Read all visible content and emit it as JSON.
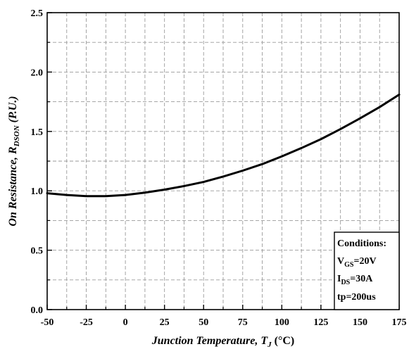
{
  "chart_data": {
    "type": "line",
    "xlabel_prefix": "Junction Temperature, ",
    "xlabel_var": "T",
    "xlabel_sub": "J",
    "xlabel_unit": " (°C)",
    "ylabel_prefix": "On Resistance, ",
    "ylabel_var": "R",
    "ylabel_sub": "DSON",
    "ylabel_unit": " (P.U.)",
    "xlim": [
      -50,
      175
    ],
    "ylim": [
      0.0,
      2.5
    ],
    "x_ticks": [
      "-50",
      "-25",
      "0",
      "25",
      "50",
      "75",
      "100",
      "125",
      "150",
      "175"
    ],
    "y_ticks": [
      "0.0",
      "0.5",
      "1.0",
      "1.5",
      "2.0",
      "2.5"
    ],
    "grid": true,
    "series": [
      {
        "x": [
          -50,
          -37.5,
          -25,
          -12.5,
          0,
          12.5,
          25,
          37.5,
          50,
          62.5,
          75,
          87.5,
          100,
          112.5,
          125,
          137.5,
          150,
          162.5,
          175
        ],
        "y": [
          0.98,
          0.965,
          0.955,
          0.955,
          0.965,
          0.985,
          1.01,
          1.04,
          1.075,
          1.12,
          1.17,
          1.225,
          1.29,
          1.36,
          1.435,
          1.52,
          1.61,
          1.705,
          1.81
        ]
      }
    ]
  },
  "conditions": {
    "title": "Conditions:",
    "line1_main": "V",
    "line1_sub": "GS",
    "line1_rest": "=20V",
    "line2_main": "I",
    "line2_sub": "DS",
    "line2_rest": "=30A",
    "line3": "tp=200us"
  }
}
